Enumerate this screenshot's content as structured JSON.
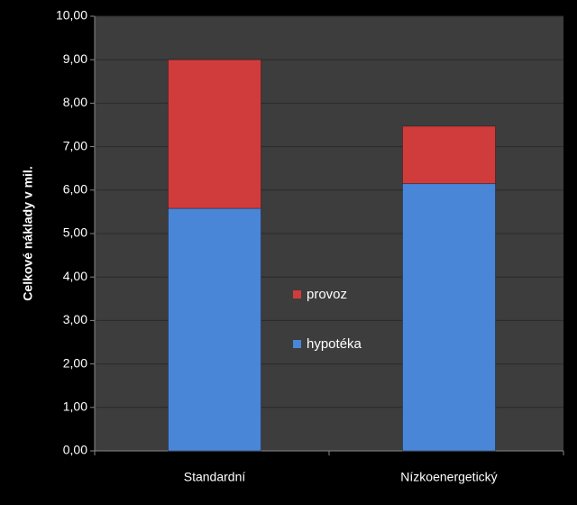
{
  "chart_data": {
    "type": "stacked-bar",
    "y_label": "Celkové náklady v mil.",
    "categories": [
      "Standardní",
      "Nízkoenergetický"
    ],
    "series": [
      {
        "name": "hypotéka",
        "color": "#4a86d8",
        "values": [
          5.58,
          6.15
        ]
      },
      {
        "name": "provoz",
        "color": "#d03c3c",
        "values": [
          3.42,
          1.32
        ]
      }
    ],
    "ylim": [
      0,
      10
    ],
    "yticks": [
      {
        "value": 0,
        "label": "0,00"
      },
      {
        "value": 1,
        "label": "1,00"
      },
      {
        "value": 2,
        "label": "2,00"
      },
      {
        "value": 3,
        "label": "3,00"
      },
      {
        "value": 4,
        "label": "4,00"
      },
      {
        "value": 5,
        "label": "5,00"
      },
      {
        "value": 6,
        "label": "6,00"
      },
      {
        "value": 7,
        "label": "7,00"
      },
      {
        "value": 8,
        "label": "8,00"
      },
      {
        "value": 9,
        "label": "9,00"
      },
      {
        "value": 10,
        "label": "10,00"
      }
    ],
    "grid": true
  }
}
